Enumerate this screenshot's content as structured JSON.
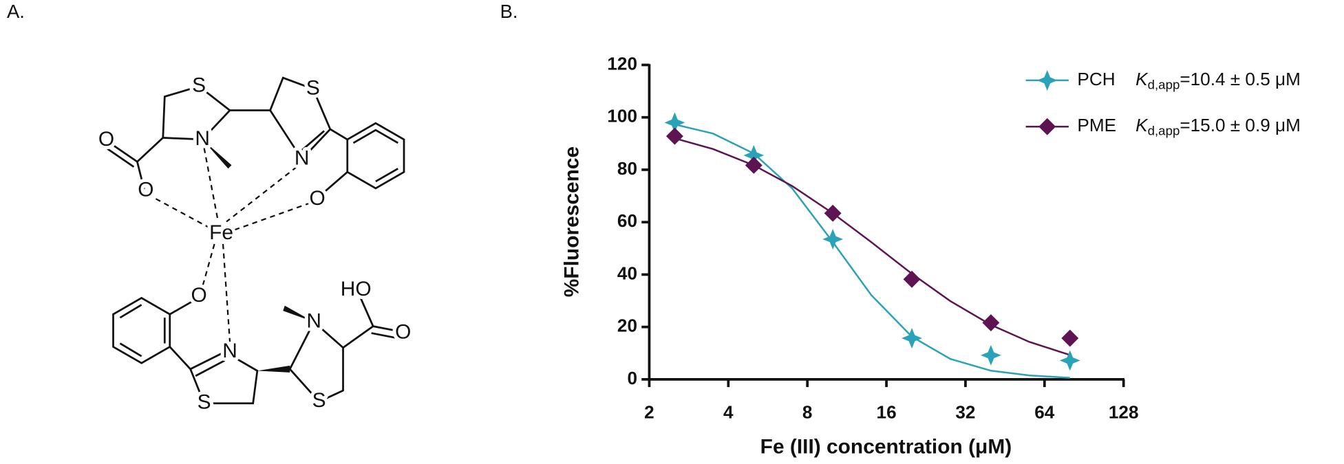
{
  "panels": [
    "A.",
    "B."
  ],
  "structure": {
    "atoms": [
      "S",
      "S",
      "O",
      "N",
      "N",
      "O",
      "O",
      "Fe",
      "O",
      "HO",
      "O",
      "N",
      "N",
      "S",
      "S"
    ]
  },
  "chart_data": {
    "type": "line",
    "x_label": "Fe (III) concentration (μM)",
    "y_label": "%Fluorescence",
    "x_scale": "log2",
    "xlim": [
      2,
      128
    ],
    "xticks": [
      2,
      4,
      8,
      16,
      32,
      64,
      128
    ],
    "ylim": [
      0,
      120
    ],
    "yticks": [
      0,
      20,
      40,
      60,
      80,
      100,
      120
    ],
    "legend_position": "upper right",
    "x": [
      2.5,
      5,
      10,
      20,
      40,
      80
    ],
    "fit_x": [
      2.5,
      3.5,
      5,
      7,
      10,
      14,
      20,
      28,
      40,
      56,
      80
    ],
    "series": [
      {
        "name": "PCH",
        "kd_label": {
          "symbol": "K",
          "subscript": "d,app",
          "text": "=10.4 ± 0.5 μM"
        },
        "color": "#2aa3b8",
        "marker": "star",
        "values": [
          98,
          85.5,
          53.5,
          15.7,
          9.2,
          7.2
        ],
        "fit": [
          97.3,
          93.8,
          86.2,
          72.9,
          52.4,
          32.2,
          16.3,
          7.8,
          3.3,
          1.5,
          0.6
        ]
      },
      {
        "name": "PME",
        "kd_label": {
          "symbol": "K",
          "subscript": "d,app",
          "text": "=15.0 ± 0.9 μM"
        },
        "color": "#5e1452",
        "marker": "diamond",
        "values": [
          92.8,
          81.7,
          63.4,
          38.2,
          21.6,
          15.7
        ],
        "fit": [
          92.0,
          87.9,
          81.7,
          73.8,
          63.4,
          52.4,
          40.3,
          29.9,
          20.8,
          14.3,
          9.3
        ]
      }
    ]
  }
}
